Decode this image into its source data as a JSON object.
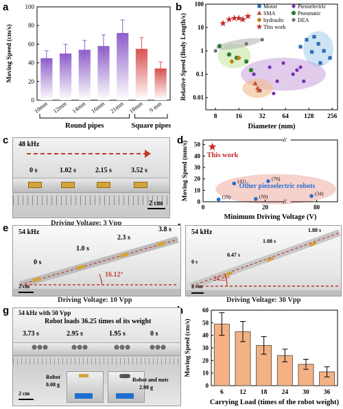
{
  "panels": {
    "a": "a",
    "b": "b",
    "c": "c",
    "d": "d",
    "e": "e",
    "f": "f",
    "g": "g",
    "h": "h"
  },
  "chart_data": [
    {
      "id": "a",
      "type": "bar",
      "ylabel": "Moving Speed (cm/s)",
      "ylim": [
        0,
        100
      ],
      "yticks": [
        0,
        20,
        40,
        60,
        80,
        100
      ],
      "categories": [
        "10mm",
        "12mm",
        "14mm",
        "16mm",
        "21mm",
        "18mm",
        "9 mm"
      ],
      "values": [
        45,
        50,
        54,
        58,
        72,
        55,
        34
      ],
      "errors": [
        8,
        10,
        10,
        12,
        14,
        12,
        7
      ],
      "groups": [
        {
          "label": "Round pipes",
          "from": 0,
          "to": 4,
          "color": "#8e5ec9"
        },
        {
          "label": "Square  pipes",
          "from": 5,
          "to": 6,
          "color": "#d9534f"
        }
      ]
    },
    {
      "id": "b",
      "type": "scatter",
      "xlabel": "Diameter (mm)",
      "ylabel": "Relative Speed (Body Length/s)",
      "xscale": "log2",
      "yscale": "log10",
      "xticks": [
        8,
        16,
        32,
        64,
        128,
        256
      ],
      "yticks": [
        0.01,
        0.1,
        1,
        10,
        100
      ],
      "xlim": [
        6,
        300
      ],
      "ylim": [
        0.003,
        100
      ],
      "legend": [
        {
          "name": "Motor",
          "marker": "square",
          "color": "#2d6db5"
        },
        {
          "name": "Piezoelectric",
          "marker": "circle",
          "color": "#7b2fa8"
        },
        {
          "name": "SMA",
          "marker": "triangle",
          "color": "#c0502b"
        },
        {
          "name": "Pneumatic",
          "marker": "pentagon",
          "color": "#2e7d32"
        },
        {
          "name": "hydraulic",
          "marker": "diamond",
          "color": "#b8860b"
        },
        {
          "name": "DEA",
          "marker": "circle",
          "color": "#707070"
        },
        {
          "name": "This work",
          "marker": "star",
          "color": "#c62828"
        }
      ],
      "series": [
        {
          "name": "This work",
          "points": [
            [
              10,
              15
            ],
            [
              12,
              22
            ],
            [
              14,
              25
            ],
            [
              16,
              25
            ],
            [
              18,
              22
            ],
            [
              21,
              30
            ]
          ]
        },
        {
          "name": "Motor",
          "points": [
            [
              120,
              3
            ],
            [
              140,
              0.9
            ],
            [
              170,
              2
            ],
            [
              200,
              1
            ],
            [
              240,
              0.5
            ],
            [
              100,
              1.5
            ],
            [
              150,
              4
            ],
            [
              180,
              0.3
            ]
          ]
        },
        {
          "name": "Piezoelectric",
          "points": [
            [
              25,
              0.1
            ],
            [
              40,
              0.2
            ],
            [
              50,
              0.05
            ],
            [
              60,
              0.3
            ],
            [
              80,
              0.1
            ],
            [
              90,
              0.15
            ],
            [
              100,
              0.2
            ],
            [
              110,
              0.05
            ],
            [
              45,
              0.015
            ],
            [
              30,
              0.02
            ]
          ]
        },
        {
          "name": "SMA",
          "points": [
            [
              26,
              0.04
            ],
            [
              28,
              0.025
            ],
            [
              29,
              0.02
            ]
          ]
        },
        {
          "name": "Pneumatic",
          "points": [
            [
              9,
              1.6
            ],
            [
              12,
              0.7
            ],
            [
              15,
              0.5
            ],
            [
              20,
              0.35
            ],
            [
              23,
              0.15
            ]
          ]
        },
        {
          "name": "hydraulic",
          "points": [
            [
              13,
              0.35
            ],
            [
              16,
              0.5
            ]
          ]
        },
        {
          "name": "DEA",
          "points": [
            [
              8,
              1
            ],
            [
              20,
              2
            ],
            [
              32,
              3
            ]
          ]
        }
      ]
    },
    {
      "id": "d",
      "type": "scatter",
      "xlabel": "Minimum Driving Voltage (V)",
      "ylabel": "Moving Speed (mm/s)",
      "xticks": [
        0,
        20,
        40,
        60,
        80
      ],
      "yticks": [
        0,
        10,
        20,
        30,
        40,
        50
      ],
      "axis_break": true,
      "highlight": {
        "label": "This work",
        "x": 3,
        "y": 48
      },
      "group_label": "Other piezoelectric robots",
      "series": [
        {
          "name": "Other piezoelectric robots",
          "points": [
            {
              "x": 10,
              "y": 16,
              "ref": "(41)"
            },
            {
              "x": 21,
              "y": 18,
              "ref": "(76)"
            },
            {
              "x": 5,
              "y": 2,
              "ref": "(29)"
            },
            {
              "x": 17,
              "y": 2.5,
              "ref": "(59)"
            },
            {
              "x": 78,
              "y": 5,
              "ref": "(34)"
            }
          ]
        }
      ]
    },
    {
      "id": "h",
      "type": "bar",
      "xlabel": "Carrying Load (times of the robot weight)",
      "ylabel": "Moving Speed (cm/s)",
      "ylim": [
        0,
        60
      ],
      "yticks": [
        0,
        10,
        20,
        30,
        40,
        50,
        60
      ],
      "categories": [
        "6",
        "12",
        "18",
        "24",
        "30",
        "36"
      ],
      "values": [
        49,
        43,
        32,
        24,
        17,
        11
      ],
      "errors": [
        9,
        8,
        7,
        5,
        4,
        4
      ],
      "color": "#f4b183"
    }
  ],
  "photos": {
    "c": {
      "freq": "48 kHz",
      "times": [
        "0 s",
        "1.02 s",
        "2.15 s",
        "3.52 s"
      ],
      "scale": "2 cm",
      "caption": "Driving Voltage: 3 Vpp"
    },
    "e": {
      "freq": "54 kHz",
      "times": [
        "0 s",
        "1.0 s",
        "2.3 s",
        "3.8 s"
      ],
      "angle": "16.12°",
      "scale": "2 cm",
      "caption": "Driving Voltage: 10 Vpp"
    },
    "f": {
      "freq": "54 kHz",
      "times": [
        "0 s",
        "0.47 s",
        "1.08 s",
        "1.88 s"
      ],
      "angle": "24.25°",
      "scale": "2 cm",
      "caption": "Driving Voltage: 30 Vpp"
    },
    "g": {
      "freq": "54 kHz with 50 Vpp",
      "title": "Robot loads 36.25 times of its weight",
      "times": [
        "3.73 s",
        "2.95 s",
        "1.95 s",
        "0 s"
      ],
      "robot_label": "Robot",
      "robot_weight": "0.08 g",
      "nuts_label": "Robot and nuts",
      "nuts_weight": "2.98 g",
      "scale": "2 cm"
    }
  }
}
